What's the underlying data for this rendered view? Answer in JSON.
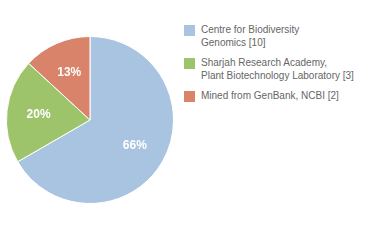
{
  "chart_data": {
    "type": "pie",
    "categories": [
      "Centre for Biodiversity\nGenomics [10]",
      "Sharjah Research Academy,\nPlant Biotechnology Laboratory [3]",
      "Mined from GenBank, NCBI [2]"
    ],
    "values": [
      66,
      20,
      13
    ],
    "value_labels": [
      "66%",
      "20%",
      "13%"
    ],
    "data_labels": true,
    "colors": [
      "#a8c4e0",
      "#9dc36b",
      "#d9836b"
    ],
    "legend": "right"
  }
}
